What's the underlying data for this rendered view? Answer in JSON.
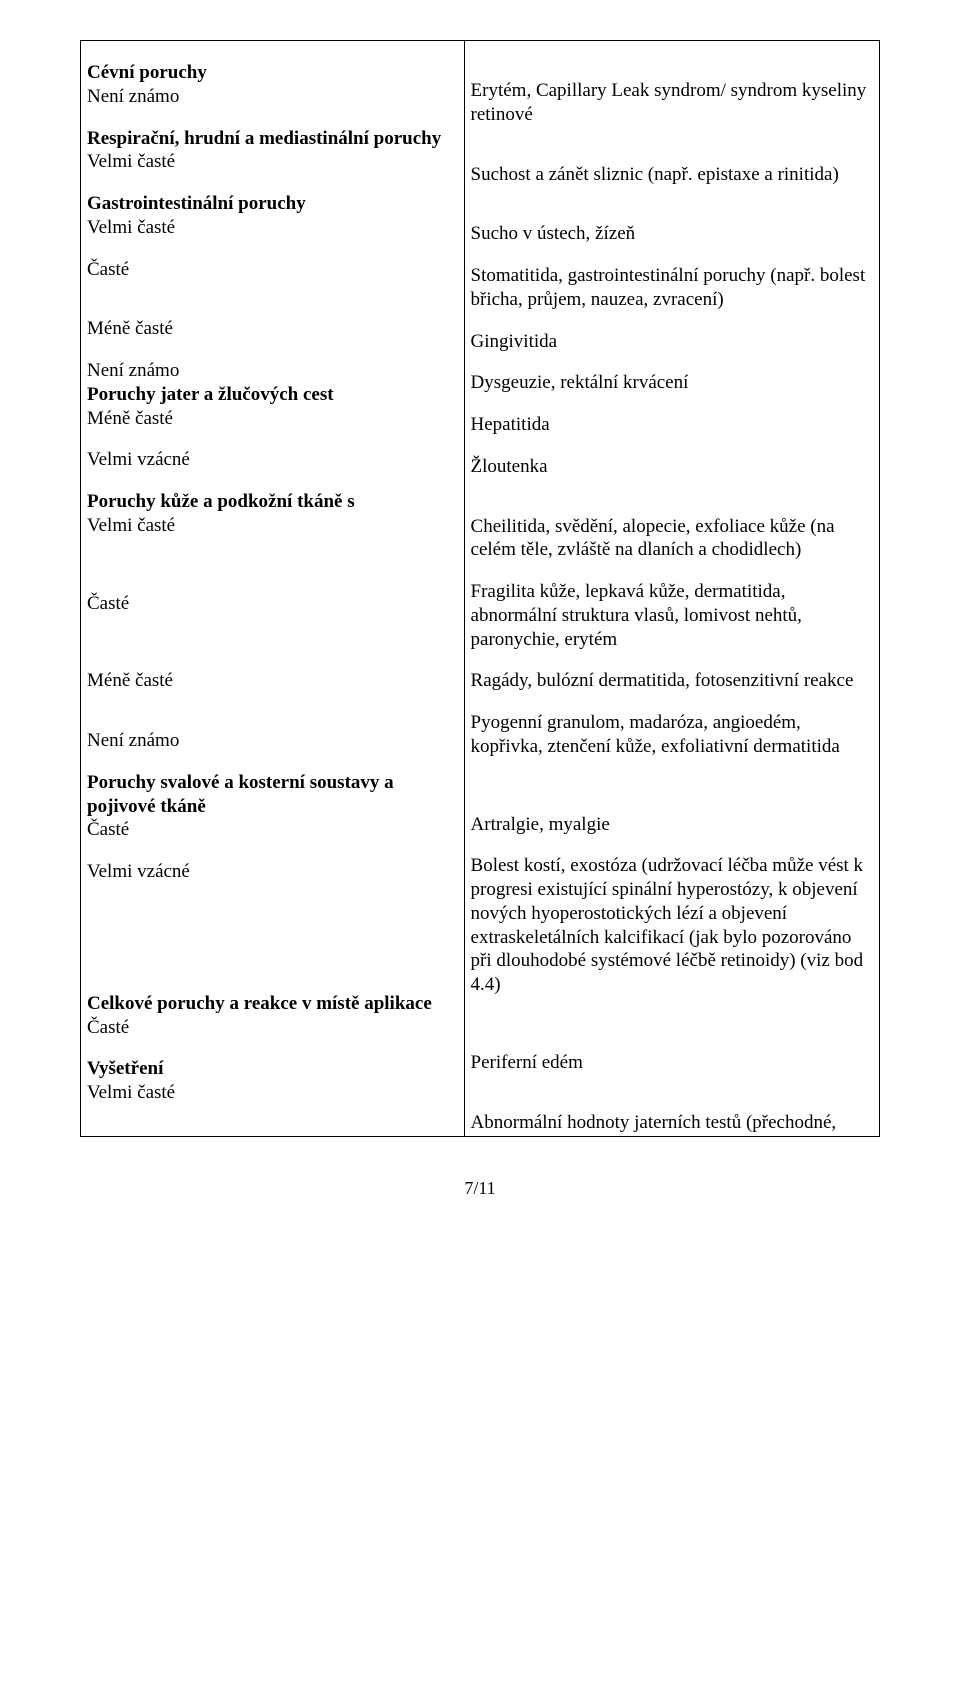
{
  "rows": [
    {
      "left": [
        {
          "t": "",
          "spacer": true
        },
        {
          "t": "Cévní poruchy",
          "bold": true
        },
        {
          "t": "Není známo"
        },
        {
          "t": "",
          "spacer": true
        },
        {
          "t": "Respirační, hrudní a mediastinální poruchy",
          "bold": true
        },
        {
          "t": "Velmi časté"
        },
        {
          "t": "",
          "spacer": true
        },
        {
          "t": "Gastrointestinální poruchy",
          "bold": true
        },
        {
          "t": "Velmi časté"
        },
        {
          "t": "",
          "spacer": true
        },
        {
          "t": "Časté"
        },
        {
          "t": "",
          "spacer": true
        },
        {
          "t": "",
          "spacer": true
        },
        {
          "t": "Méně časté"
        },
        {
          "t": "",
          "spacer": true
        },
        {
          "t": "Není známo"
        },
        {
          "t": "Poruchy jater a žlučových cest",
          "bold": true
        },
        {
          "t": "Méně časté"
        },
        {
          "t": "",
          "spacer": true
        },
        {
          "t": "Velmi vzácné"
        },
        {
          "t": "",
          "spacer": true
        },
        {
          "t": "Poruchy kůže a podkožní tkáně s",
          "bold": true
        },
        {
          "t": "Velmi časté"
        },
        {
          "t": "",
          "spacer": true
        },
        {
          "t": "",
          "spacer": true
        },
        {
          "t": "",
          "spacer": true
        },
        {
          "t": "Časté"
        },
        {
          "t": "",
          "spacer": true
        },
        {
          "t": "",
          "spacer": true
        },
        {
          "t": "",
          "spacer": true
        },
        {
          "t": "Méně časté"
        },
        {
          "t": "",
          "spacer": true
        },
        {
          "t": "",
          "spacer": true
        },
        {
          "t": "Není známo"
        },
        {
          "t": "",
          "spacer": true
        },
        {
          "t": "Poruchy svalové a kosterní soustavy a pojivové tkáně",
          "bold": true
        },
        {
          "t": "Časté"
        },
        {
          "t": "",
          "spacer": true
        },
        {
          "t": "Velmi vzácné"
        },
        {
          "t": "",
          "spacer": true
        },
        {
          "t": "",
          "spacer": true
        },
        {
          "t": "",
          "spacer": true
        },
        {
          "t": "",
          "spacer": true
        },
        {
          "t": "",
          "spacer": true
        },
        {
          "t": "",
          "spacer": true
        },
        {
          "t": "Celkové poruchy a reakce v místě aplikace",
          "bold": true
        },
        {
          "t": "Časté"
        },
        {
          "t": "",
          "spacer": true
        },
        {
          "t": "Vyšetření",
          "bold": true
        },
        {
          "t": "Velmi časté"
        }
      ],
      "right": [
        {
          "t": "",
          "spacer": true
        },
        {
          "t": "",
          "spacer": true
        },
        {
          "t": "Erytém, Capillary Leak syndrom/ syndrom kyseliny retinové"
        },
        {
          "t": "",
          "spacer": true
        },
        {
          "t": "",
          "spacer": true
        },
        {
          "t": "Suchost a zánět sliznic (např. epistaxe a  rinitida)"
        },
        {
          "t": "",
          "spacer": true
        },
        {
          "t": "",
          "spacer": true
        },
        {
          "t": "Sucho v ústech, žízeň"
        },
        {
          "t": "",
          "spacer": true
        },
        {
          "t": "Stomatitida, gastrointestinální poruchy (např. bolest břicha, průjem, nauzea, zvracení)"
        },
        {
          "t": "",
          "spacer": true
        },
        {
          "t": "Gingivitida"
        },
        {
          "t": "",
          "spacer": true
        },
        {
          "t": "Dysgeuzie, rektální krvácení"
        },
        {
          "t": "",
          "spacer": true
        },
        {
          "t": "Hepatitida"
        },
        {
          "t": "",
          "spacer": true
        },
        {
          "t": "Žloutenka"
        },
        {
          "t": "",
          "spacer": true
        },
        {
          "t": "",
          "spacer": true
        },
        {
          "t": "Cheilitida, svědění, alopecie, exfoliace kůže (na celém těle, zvláště na dlaních a chodidlech)"
        },
        {
          "t": "",
          "spacer": true
        },
        {
          "t": "Fragilita kůže, lepkavá kůže, dermatitida, abnormální struktura vlasů, lomivost nehtů, paronychie, erytém"
        },
        {
          "t": "",
          "spacer": true
        },
        {
          "t": "Ragády, bulózní dermatitida, fotosenzitivní reakce"
        },
        {
          "t": "",
          "spacer": true
        },
        {
          "t": "Pyogenní granulom, madaróza, angioedém, kopřivka, ztenčení kůže, exfoliativní dermatitida"
        },
        {
          "t": "",
          "spacer": true
        },
        {
          "t": "",
          "spacer": true
        },
        {
          "t": "",
          "spacer": true
        },
        {
          "t": "Artralgie, myalgie"
        },
        {
          "t": "",
          "spacer": true
        },
        {
          "t": "Bolest kostí, exostóza (udržovací léčba může vést k progresi existující spinální hyperostózy, k objevení nových hyoperostotických lézí a objevení  extraskeletálních kalcifikací (jak bylo pozorováno při dlouhodobé systémové léčbě retinoidy) (viz bod 4.4)"
        },
        {
          "t": "",
          "spacer": true
        },
        {
          "t": "",
          "spacer": true
        },
        {
          "t": "",
          "spacer": true
        },
        {
          "t": "Periferní edém"
        },
        {
          "t": "",
          "spacer": true
        },
        {
          "t": "",
          "spacer": true
        },
        {
          "t": "Abnormální hodnoty jaterních testů (přechodné,"
        }
      ]
    }
  ],
  "page_number": "7/11"
}
